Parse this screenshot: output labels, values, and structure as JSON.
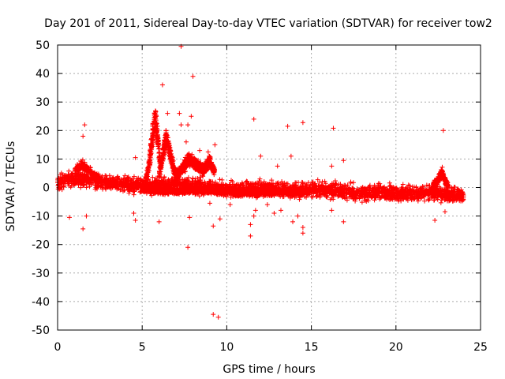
{
  "chart_data": {
    "type": "scatter",
    "title": "Day 201 of 2011, Sidereal Day-to-day VTEC variation (SDTVAR) for receiver tow2",
    "xlabel": "GPS time / hours",
    "ylabel": "SDTVAR / TECUs",
    "xlim": [
      0,
      25
    ],
    "ylim": [
      -50,
      50
    ],
    "xticks": [
      "0",
      "5",
      "10",
      "15",
      "20",
      "25"
    ],
    "yticks": [
      "50",
      "40",
      "30",
      "20",
      "10",
      "0",
      "-10",
      "-20",
      "-30",
      "-40",
      "-50"
    ],
    "grid": true,
    "marker": "+",
    "color": "#ff0000",
    "bands": [
      {
        "name": "main-band",
        "points": [
          [
            0,
            2
          ],
          [
            1,
            3
          ],
          [
            2,
            2.5
          ],
          [
            3,
            1.5
          ],
          [
            4,
            1
          ],
          [
            5,
            0.5
          ],
          [
            6,
            0.5
          ],
          [
            7,
            1
          ],
          [
            8,
            0.5
          ],
          [
            9,
            0
          ],
          [
            10,
            -0.5
          ],
          [
            11,
            -1
          ],
          [
            12,
            -0.5
          ],
          [
            13,
            -0.5
          ],
          [
            14,
            -1
          ],
          [
            15,
            -0.5
          ],
          [
            16,
            -1
          ],
          [
            17,
            -1.5
          ],
          [
            18,
            -2
          ],
          [
            19,
            -1.5
          ],
          [
            20,
            -2
          ],
          [
            21,
            -2
          ],
          [
            22,
            -1.5
          ],
          [
            23,
            -2.5
          ],
          [
            24,
            -3
          ]
        ],
        "spread": 2.5
      },
      {
        "name": "upper-band-early",
        "points": [
          [
            1,
            6
          ],
          [
            1.5,
            8
          ],
          [
            2,
            5
          ],
          [
            2.5,
            3
          ]
        ],
        "spread": 1.5
      },
      {
        "name": "lower-band",
        "points": [
          [
            5,
            -0.5
          ],
          [
            6,
            -1
          ],
          [
            7,
            -1.5
          ],
          [
            8,
            -1
          ],
          [
            9,
            -1
          ],
          [
            10,
            -1.5
          ],
          [
            11,
            -2
          ],
          [
            12,
            -2
          ],
          [
            13,
            -1.5
          ],
          [
            14,
            -2
          ],
          [
            15,
            -1.5
          ]
        ],
        "spread": 1.0
      }
    ],
    "peaks": [
      {
        "name": "peak-5.7",
        "points": [
          [
            5.2,
            3
          ],
          [
            5.4,
            8
          ],
          [
            5.6,
            20
          ],
          [
            5.75,
            28
          ],
          [
            5.9,
            20
          ],
          [
            6.1,
            8
          ]
        ]
      },
      {
        "name": "peak-6.4",
        "points": [
          [
            6.0,
            5
          ],
          [
            6.2,
            12
          ],
          [
            6.4,
            19
          ],
          [
            6.6,
            15
          ],
          [
            6.8,
            9
          ],
          [
            7.0,
            5
          ]
        ]
      },
      {
        "name": "peak-7.8",
        "points": [
          [
            7.0,
            4
          ],
          [
            7.4,
            8
          ],
          [
            7.8,
            11
          ],
          [
            8.2,
            9
          ],
          [
            8.6,
            7
          ],
          [
            9.0,
            10
          ],
          [
            9.3,
            6
          ]
        ]
      },
      {
        "name": "peak-22.7",
        "points": [
          [
            22.2,
            1
          ],
          [
            22.5,
            3
          ],
          [
            22.7,
            6
          ],
          [
            22.9,
            3
          ],
          [
            23.1,
            0
          ]
        ]
      }
    ],
    "outliers": [
      [
        7.3,
        49.5
      ],
      [
        8.0,
        39
      ],
      [
        6.2,
        36
      ],
      [
        11.6,
        24
      ],
      [
        14.5,
        22.8
      ],
      [
        13.6,
        21.5
      ],
      [
        16.3,
        20.8
      ],
      [
        22.8,
        20
      ],
      [
        1.6,
        22
      ],
      [
        1.5,
        18
      ],
      [
        7.2,
        26
      ],
      [
        7.7,
        22
      ],
      [
        7.3,
        22
      ],
      [
        6.5,
        26
      ],
      [
        7.9,
        25
      ],
      [
        7.6,
        16
      ],
      [
        9.3,
        15
      ],
      [
        4.6,
        10.5
      ],
      [
        12.0,
        11
      ],
      [
        13.0,
        7.5
      ],
      [
        13.8,
        11
      ],
      [
        16.2,
        7.5
      ],
      [
        16.9,
        9.5
      ],
      [
        8.4,
        13
      ],
      [
        8.9,
        12.5
      ],
      [
        1.5,
        -14.5
      ],
      [
        1.7,
        -10
      ],
      [
        0.7,
        -10.5
      ],
      [
        4.5,
        -9
      ],
      [
        4.6,
        -11.5
      ],
      [
        6.0,
        -12
      ],
      [
        7.7,
        -21
      ],
      [
        7.8,
        -10.5
      ],
      [
        9.2,
        -44.5
      ],
      [
        9.5,
        -45.5
      ],
      [
        9.2,
        -13.5
      ],
      [
        9.6,
        -11
      ],
      [
        11.4,
        -13
      ],
      [
        11.4,
        -17
      ],
      [
        11.6,
        -10
      ],
      [
        12.8,
        -9
      ],
      [
        13.2,
        -8
      ],
      [
        14.2,
        -10
      ],
      [
        14.5,
        -14
      ],
      [
        14.5,
        -16
      ],
      [
        16.2,
        -8
      ],
      [
        16.9,
        -12
      ],
      [
        22.3,
        -11.5
      ],
      [
        22.9,
        -8.5
      ],
      [
        13.9,
        -12
      ],
      [
        11.7,
        -8
      ],
      [
        10.2,
        -6
      ],
      [
        9.0,
        -5.5
      ],
      [
        12.4,
        -6
      ]
    ]
  }
}
